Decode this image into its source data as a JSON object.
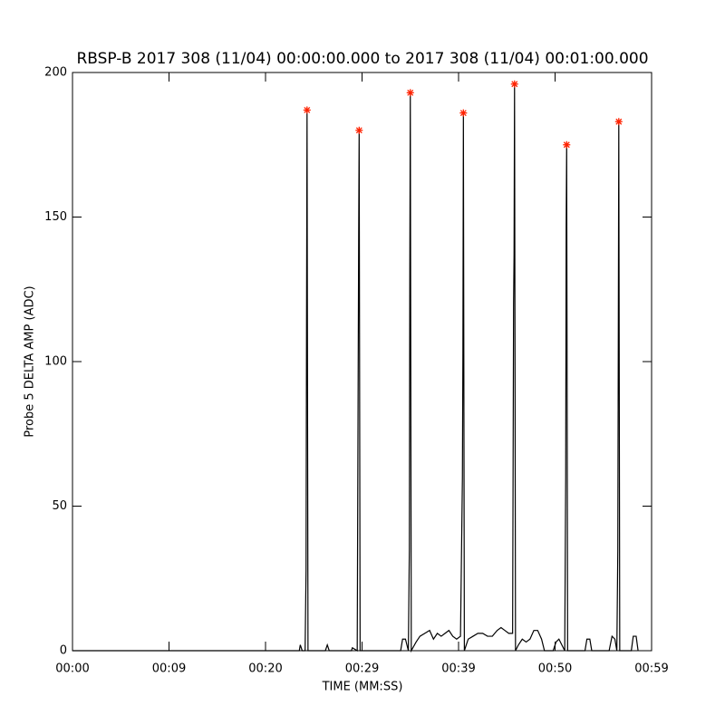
{
  "chart_data": {
    "type": "line",
    "title": "RBSP-B 2017 308 (11/04) 00:00:00.000 to 2017 308 (11/04) 00:01:00.000",
    "x_label": "TIME (MM:SS)",
    "y_label": "Probe 5 DELTA AMP (ADC)",
    "xlim": [
      0,
      60
    ],
    "ylim": [
      0,
      200
    ],
    "xticks": [
      {
        "value": 0,
        "label": "00:00"
      },
      {
        "value": 10,
        "label": "00:09"
      },
      {
        "value": 20,
        "label": "00:20"
      },
      {
        "value": 30,
        "label": "00:29"
      },
      {
        "value": 40,
        "label": "00:39"
      },
      {
        "value": 50,
        "label": "00:50"
      },
      {
        "value": 60,
        "label": "00:59"
      }
    ],
    "yticks": [
      0,
      50,
      100,
      150,
      200
    ],
    "series": [
      {
        "color": "#000000",
        "marker": "none",
        "x": [
          0,
          23.5,
          23.6,
          23.8,
          24.1,
          24.2,
          24.25,
          24.3,
          24.4,
          26.2,
          26.4,
          26.6,
          28.9,
          29.0,
          29.5,
          29.6,
          29.65,
          29.7,
          29.8,
          34.0,
          34.2,
          34.5,
          34.8,
          34.9,
          34.95,
          35.0,
          35.1,
          35.6,
          36.0,
          36.5,
          37.0,
          37.4,
          37.8,
          38.2,
          38.6,
          39.0,
          39.4,
          39.8,
          40.2,
          40.4,
          40.45,
          40.5,
          40.6,
          40.8,
          41.0,
          41.5,
          42.0,
          42.5,
          43.0,
          43.5,
          44.0,
          44.4,
          44.8,
          45.2,
          45.6,
          45.7,
          45.75,
          45.8,
          45.9,
          46.2,
          46.6,
          47.0,
          47.4,
          47.8,
          48.2,
          48.6,
          48.9,
          49.8,
          50.1,
          50.4,
          50.7,
          51.0,
          51.1,
          51.15,
          51.2,
          51.3,
          53.1,
          53.3,
          53.6,
          53.8,
          55.6,
          55.9,
          56.2,
          56.4,
          56.5,
          56.55,
          56.6,
          56.7,
          57.9,
          58.1,
          58.4,
          58.6
        ],
        "values": [
          0,
          0,
          2,
          0,
          0,
          28,
          113,
          187,
          0,
          0,
          2,
          0,
          0,
          1,
          0,
          97,
          143,
          180,
          0,
          0,
          4,
          4,
          0,
          35,
          132,
          193,
          0,
          3,
          5,
          6,
          7,
          4,
          6,
          5,
          6,
          7,
          5,
          4,
          5,
          60,
          103,
          186,
          0,
          2,
          4,
          5,
          6,
          6,
          5,
          5,
          7,
          8,
          7,
          6,
          6,
          120,
          137,
          196,
          0,
          2,
          4,
          3,
          4,
          7,
          7,
          4,
          0,
          0,
          3,
          4,
          2,
          0,
          60,
          147,
          175,
          0,
          0,
          4,
          4,
          0,
          0,
          5,
          4,
          0,
          35,
          106,
          183,
          0,
          0,
          5,
          5,
          0
        ]
      },
      {
        "color": "#ff2200",
        "marker": "star",
        "x": [
          24.3,
          29.7,
          35.0,
          40.5,
          45.8,
          51.2,
          56.6
        ],
        "values": [
          187,
          180,
          193,
          186,
          196,
          175,
          183
        ]
      }
    ]
  }
}
